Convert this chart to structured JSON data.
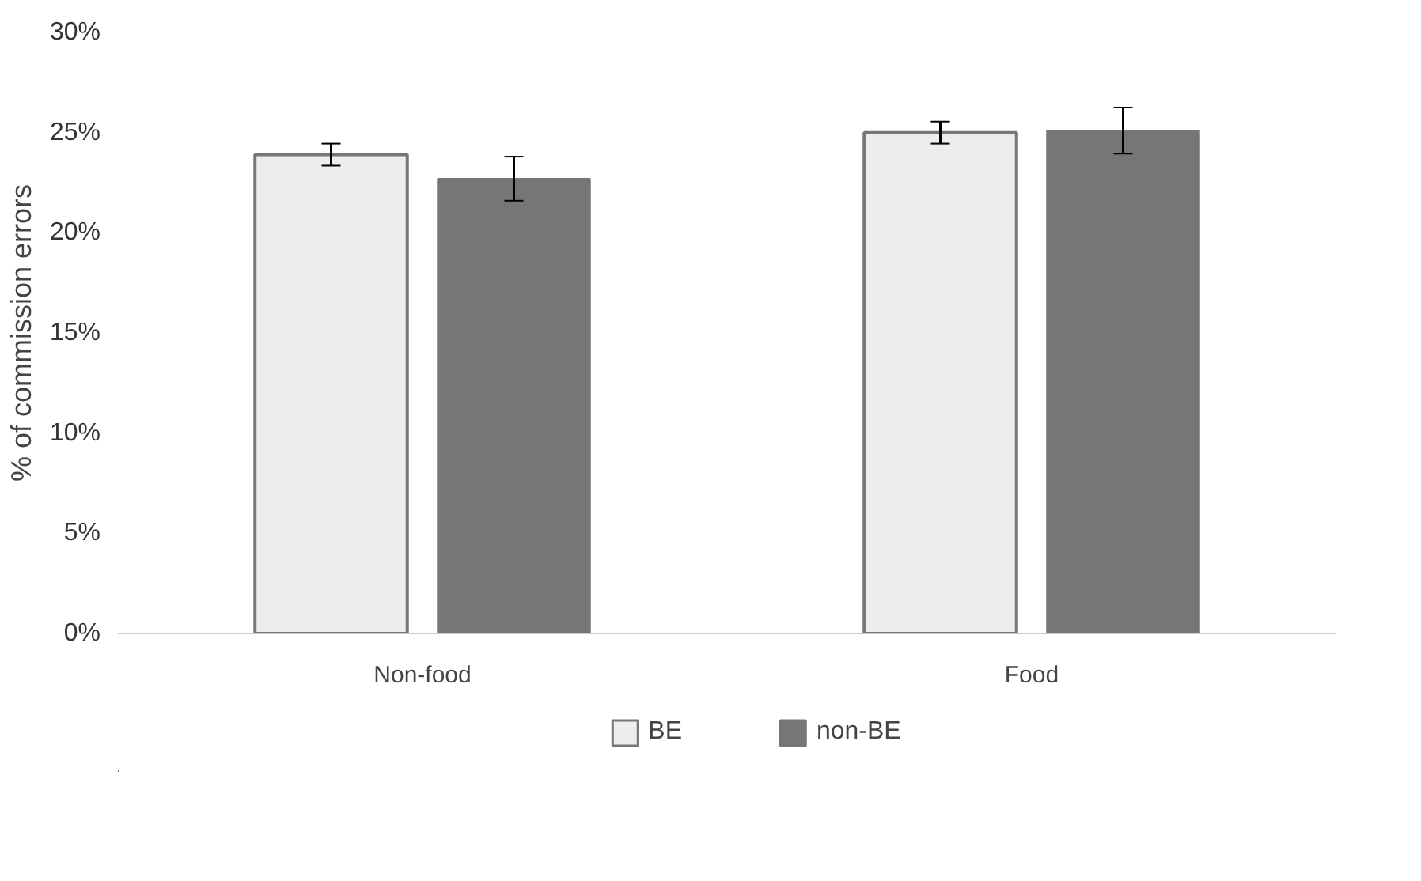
{
  "chart_data": {
    "type": "bar",
    "ylabel": "% of commission errors",
    "categories": [
      "Non-food",
      "Food"
    ],
    "series": [
      {
        "name": "BE",
        "color": "#ededed",
        "values": [
          23.9,
          25.0
        ],
        "errors": [
          0.55,
          0.55
        ]
      },
      {
        "name": "non-BE",
        "color": "#767676",
        "values": [
          22.7,
          25.1
        ],
        "errors": [
          1.1,
          1.15
        ]
      }
    ],
    "ylim": [
      0,
      30
    ],
    "yticks": [
      {
        "value": 0,
        "label": "0%"
      },
      {
        "value": 5,
        "label": "5%"
      },
      {
        "value": 10,
        "label": "10%"
      },
      {
        "value": 15,
        "label": "15%"
      },
      {
        "value": 20,
        "label": "20%"
      },
      {
        "value": 25,
        "label": "25%"
      },
      {
        "value": 30,
        "label": "30%"
      }
    ],
    "grid": false,
    "legend": "bottom"
  }
}
